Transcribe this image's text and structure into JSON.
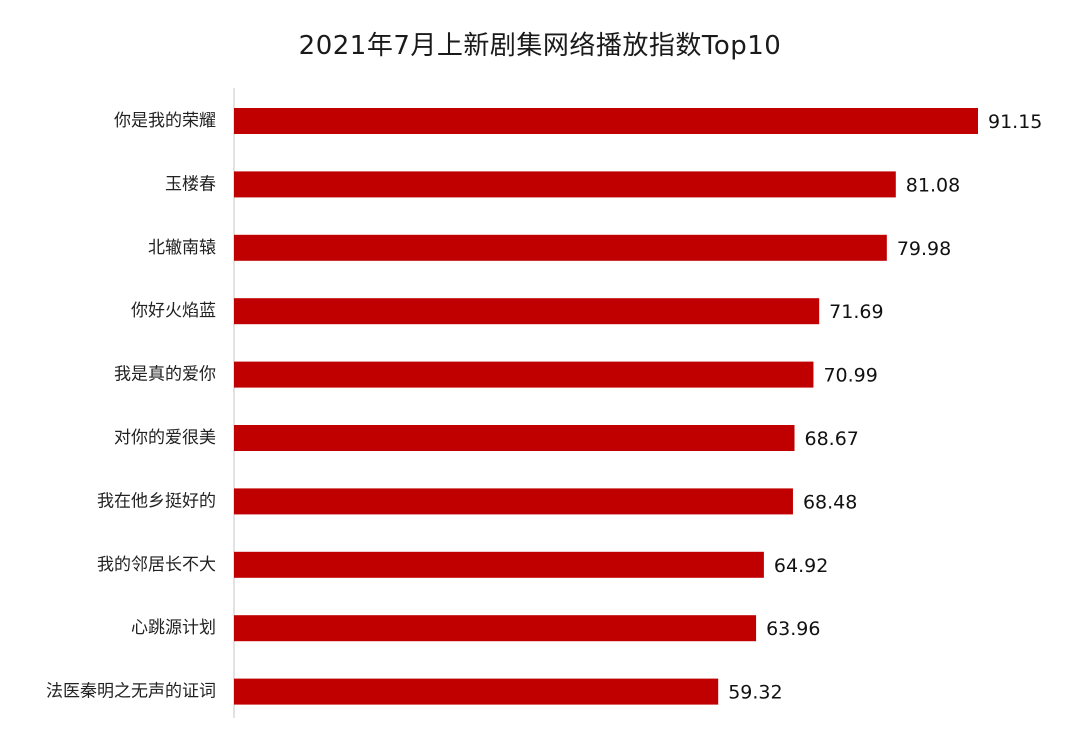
{
  "chart_data": {
    "type": "bar",
    "orientation": "horizontal",
    "title": "2021年7月上新剧集网络播放指数Top10",
    "categories": [
      "你是我的荣耀",
      "玉楼春",
      "北辙南辕",
      "你好火焰蓝",
      "我是真的爱你",
      "对你的爱很美",
      "我在他乡挺好的",
      "我的邻居长不大",
      "心跳源计划",
      "法医秦明之无声的证词"
    ],
    "values": [
      91.15,
      81.08,
      79.98,
      71.69,
      70.99,
      68.67,
      68.48,
      64.92,
      63.96,
      59.32
    ],
    "value_labels": [
      "91.15",
      "81.08",
      "79.98",
      "71.69",
      "70.99",
      "68.67",
      "68.48",
      "64.92",
      "63.96",
      "59.32"
    ],
    "xlim": [
      0,
      91.15
    ],
    "grid": false,
    "legend": "none",
    "colors": {
      "bar": "#C00000",
      "axis": "#D9D9D9",
      "text": "#222222"
    }
  }
}
